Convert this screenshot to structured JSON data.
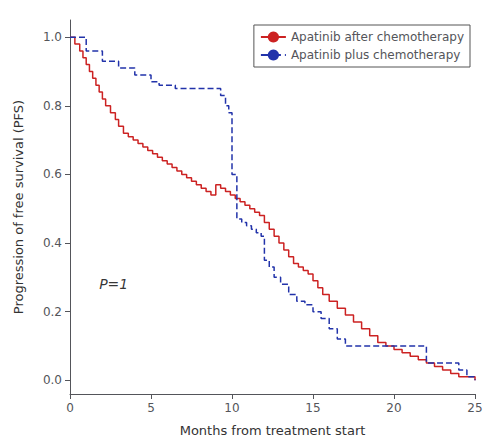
{
  "chart_data": {
    "type": "step",
    "xlabel": "Months from treatment start",
    "ylabel": "Progression of free survival (PFS)",
    "xlim": [
      0,
      25
    ],
    "ylim": [
      -0.04,
      1.05
    ],
    "xticks": [
      0,
      5,
      10,
      15,
      20,
      25
    ],
    "yticks": [
      {
        "value": 0.0,
        "label": "0.0"
      },
      0.2,
      0.4,
      0.6,
      0.8,
      {
        "value": 1.0,
        "label": "1.0"
      }
    ],
    "grid": false,
    "legend": "upper right",
    "annotations": [
      {
        "text": "P=1",
        "x": 1.8,
        "y": 0.28
      }
    ],
    "series": [
      {
        "name": "Apatinib after chemotherapy",
        "color": "#cc2222",
        "line_style": "solid",
        "x": [
          0,
          0.3,
          0.6,
          0.8,
          1.0,
          1.2,
          1.4,
          1.6,
          1.8,
          2.0,
          2.2,
          2.5,
          2.8,
          3.0,
          3.3,
          3.6,
          3.9,
          4.2,
          4.5,
          4.8,
          5.1,
          5.4,
          5.7,
          6.0,
          6.3,
          6.6,
          6.9,
          7.2,
          7.5,
          7.8,
          8.1,
          8.4,
          8.7,
          9.0,
          9.3,
          9.6,
          9.9,
          10.2,
          10.5,
          10.8,
          11.1,
          11.4,
          11.7,
          12.0,
          12.3,
          12.6,
          12.9,
          13.2,
          13.5,
          13.8,
          14.1,
          14.4,
          14.7,
          15.0,
          15.3,
          15.6,
          16.0,
          16.5,
          17.0,
          17.5,
          18.0,
          18.5,
          19.0,
          19.5,
          20.0,
          20.5,
          21.0,
          21.5,
          22.0,
          22.5,
          23.0,
          23.5,
          24.0,
          24.5,
          25.0
        ],
        "values": [
          1.0,
          0.98,
          0.96,
          0.94,
          0.92,
          0.9,
          0.88,
          0.86,
          0.84,
          0.82,
          0.8,
          0.78,
          0.76,
          0.74,
          0.72,
          0.71,
          0.7,
          0.69,
          0.68,
          0.67,
          0.66,
          0.65,
          0.64,
          0.63,
          0.62,
          0.61,
          0.6,
          0.59,
          0.58,
          0.57,
          0.56,
          0.55,
          0.54,
          0.57,
          0.56,
          0.55,
          0.54,
          0.53,
          0.52,
          0.51,
          0.5,
          0.49,
          0.48,
          0.46,
          0.44,
          0.42,
          0.4,
          0.38,
          0.36,
          0.34,
          0.33,
          0.32,
          0.31,
          0.29,
          0.27,
          0.25,
          0.23,
          0.21,
          0.19,
          0.17,
          0.15,
          0.13,
          0.11,
          0.1,
          0.09,
          0.08,
          0.07,
          0.06,
          0.05,
          0.04,
          0.03,
          0.02,
          0.01,
          0.01,
          0.0
        ]
      },
      {
        "name": "Apatinib plus chemotherapy",
        "color": "#2233aa",
        "line_style": "dashed",
        "x": [
          0,
          1.0,
          2.0,
          3.0,
          4.0,
          5.0,
          5.5,
          6.0,
          6.5,
          7.0,
          7.5,
          8.0,
          8.5,
          9.0,
          9.3,
          9.6,
          9.8,
          10.0,
          10.3,
          10.6,
          10.9,
          11.2,
          11.5,
          11.8,
          12.0,
          12.3,
          12.6,
          13.0,
          13.5,
          14.0,
          14.5,
          15.0,
          15.5,
          16.0,
          16.5,
          17.0,
          18.0,
          19.0,
          20.0,
          21.0,
          22.0,
          23.0,
          24.0,
          24.5,
          25.0
        ],
        "values": [
          1.0,
          0.96,
          0.93,
          0.91,
          0.89,
          0.87,
          0.86,
          0.86,
          0.85,
          0.85,
          0.85,
          0.85,
          0.85,
          0.85,
          0.83,
          0.8,
          0.78,
          0.6,
          0.47,
          0.46,
          0.45,
          0.44,
          0.43,
          0.42,
          0.35,
          0.33,
          0.3,
          0.28,
          0.25,
          0.23,
          0.22,
          0.2,
          0.18,
          0.15,
          0.12,
          0.1,
          0.1,
          0.1,
          0.1,
          0.1,
          0.05,
          0.05,
          0.03,
          0.01,
          0.0
        ]
      }
    ]
  }
}
